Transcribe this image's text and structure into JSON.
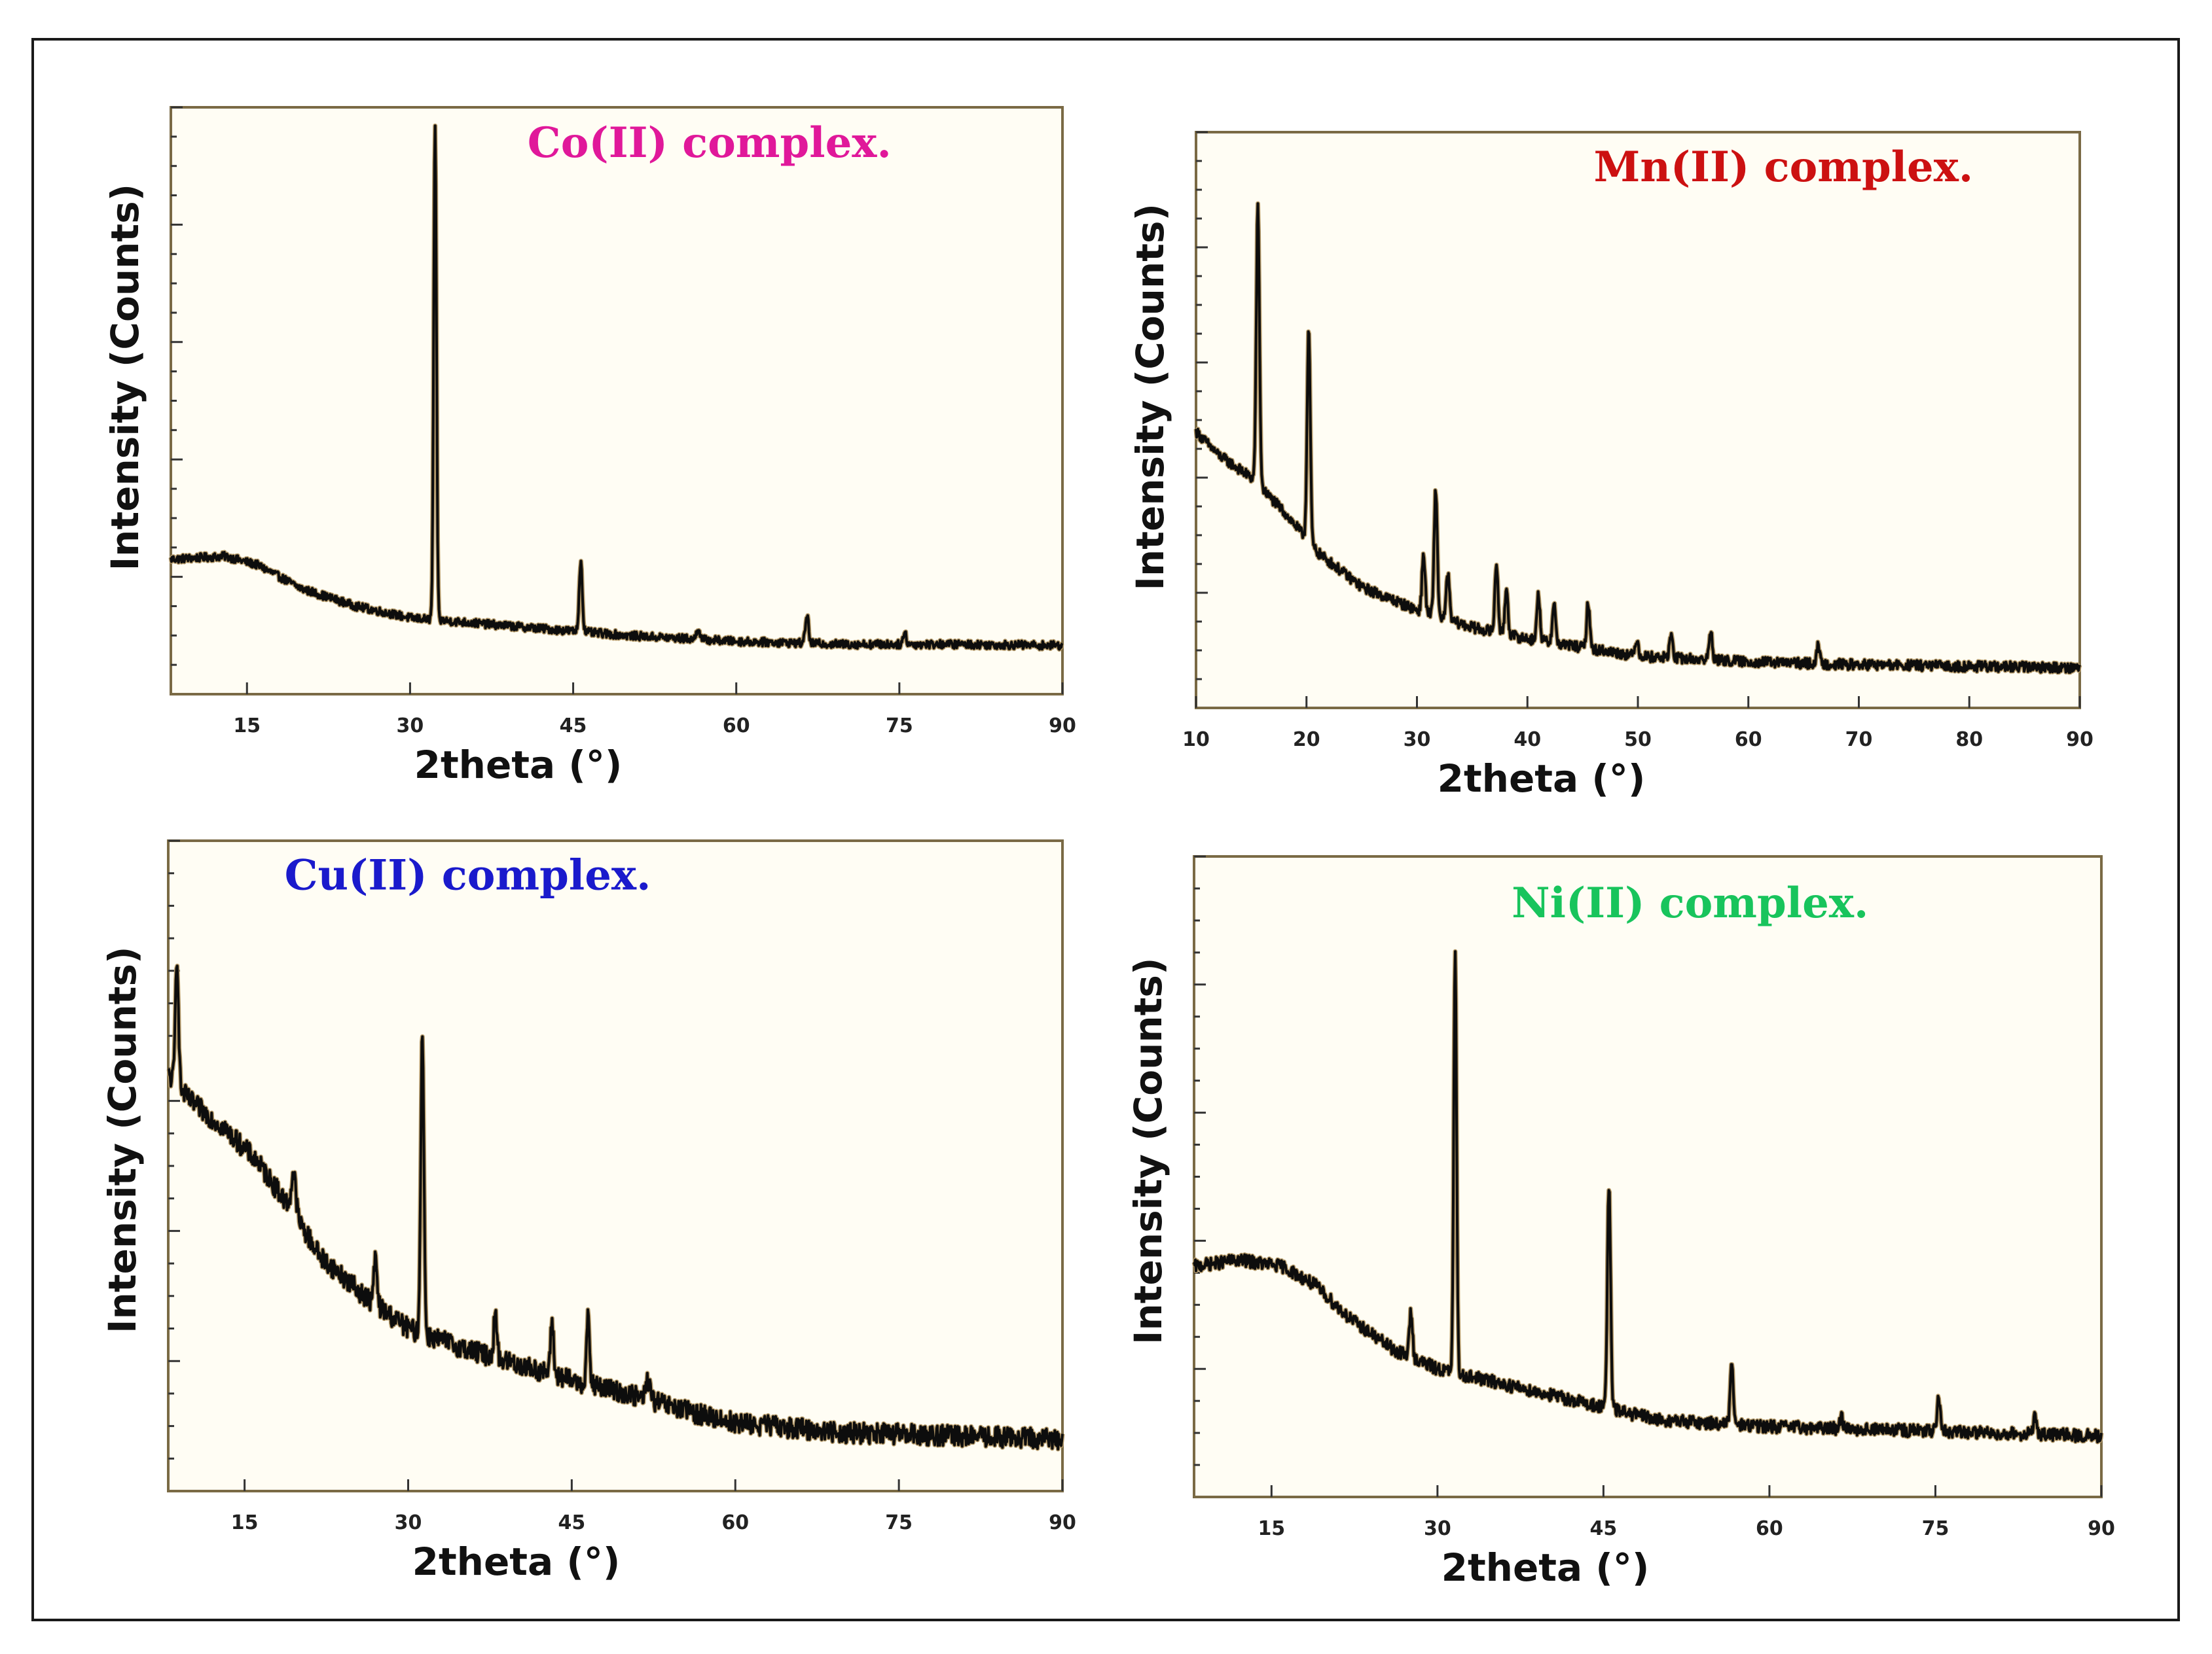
{
  "chart_data": [
    {
      "type": "line",
      "title": "Co(II) complex.",
      "title_color": "#e0189a",
      "xlabel": "2theta (°)",
      "ylabel": "Intensity (Counts)",
      "xlim": [
        8,
        90
      ],
      "ylim": [
        0,
        100
      ],
      "xticks": [
        15,
        30,
        45,
        60,
        75,
        90
      ],
      "xtick_labels": [
        "15",
        "30",
        "45",
        "60",
        "75",
        "90"
      ],
      "baseline": [
        [
          8,
          23
        ],
        [
          13,
          23.5
        ],
        [
          16,
          22
        ],
        [
          20,
          18
        ],
        [
          25,
          15
        ],
        [
          30,
          13
        ],
        [
          40,
          11.5
        ],
        [
          50,
          10
        ],
        [
          60,
          9
        ],
        [
          70,
          8.5
        ],
        [
          80,
          8.5
        ],
        [
          90,
          8.3
        ]
      ],
      "noise": 0.7,
      "peaks": [
        [
          32.3,
          84,
          0.18
        ],
        [
          45.7,
          12,
          0.2
        ],
        [
          56.5,
          2,
          0.2
        ],
        [
          66.5,
          5,
          0.2
        ],
        [
          75.5,
          2,
          0.2
        ]
      ]
    },
    {
      "type": "line",
      "title": "Mn(II) complex.",
      "title_color": "#cc1111",
      "xlabel": "2theta (°)",
      "ylabel": "Intensity (Counts)",
      "xlim": [
        10,
        90
      ],
      "ylim": [
        0,
        100
      ],
      "xticks": [
        10,
        20,
        30,
        40,
        50,
        60,
        70,
        80,
        90
      ],
      "xtick_labels": [
        "10",
        "20",
        "30",
        "40",
        "50",
        "60",
        "70",
        "80",
        "90"
      ],
      "baseline": [
        [
          10,
          48
        ],
        [
          12,
          44
        ],
        [
          15,
          40
        ],
        [
          18,
          34
        ],
        [
          21,
          27
        ],
        [
          25,
          21
        ],
        [
          30,
          17
        ],
        [
          35,
          14
        ],
        [
          40,
          12
        ],
        [
          50,
          9
        ],
        [
          60,
          8
        ],
        [
          70,
          7.5
        ],
        [
          80,
          7.2
        ],
        [
          90,
          7
        ]
      ],
      "noise": 0.9,
      "peaks": [
        [
          15.6,
          48,
          0.2
        ],
        [
          20.2,
          37,
          0.2
        ],
        [
          30.6,
          10,
          0.2
        ],
        [
          31.7,
          22,
          0.2
        ],
        [
          32.8,
          8,
          0.2
        ],
        [
          37.2,
          12,
          0.2
        ],
        [
          38.1,
          8,
          0.2
        ],
        [
          41,
          8,
          0.2
        ],
        [
          42.4,
          7,
          0.2
        ],
        [
          45.5,
          8,
          0.2
        ],
        [
          49.9,
          3,
          0.2
        ],
        [
          53,
          4,
          0.2
        ],
        [
          56.6,
          5,
          0.2
        ],
        [
          66.3,
          3,
          0.2
        ]
      ]
    },
    {
      "type": "line",
      "title": "Cu(II) complex.",
      "title_color": "#1a1acc",
      "xlabel": "2theta (°)",
      "ylabel": "Intensity (Counts)",
      "xlim": [
        8,
        90
      ],
      "ylim": [
        0,
        100
      ],
      "xticks": [
        15,
        30,
        45,
        60,
        75,
        90
      ],
      "xtick_labels": [
        "15",
        "30",
        "45",
        "60",
        "75",
        "90"
      ],
      "baseline": [
        [
          8,
          64
        ],
        [
          10,
          60
        ],
        [
          13,
          56
        ],
        [
          16,
          51
        ],
        [
          19,
          44
        ],
        [
          22,
          36
        ],
        [
          26,
          30
        ],
        [
          30,
          25
        ],
        [
          35,
          22
        ],
        [
          40,
          19.5
        ],
        [
          45,
          17
        ],
        [
          50,
          15
        ],
        [
          55,
          12.5
        ],
        [
          60,
          10.5
        ],
        [
          70,
          9
        ],
        [
          80,
          8.5
        ],
        [
          90,
          8
        ]
      ],
      "noise": 1.6,
      "peaks": [
        [
          8.8,
          20,
          0.2
        ],
        [
          19.5,
          6,
          0.3
        ],
        [
          27,
          7,
          0.2
        ],
        [
          31.3,
          47,
          0.2
        ],
        [
          38,
          7,
          0.2
        ],
        [
          43.2,
          8,
          0.2
        ],
        [
          46.5,
          10,
          0.2
        ],
        [
          52,
          3,
          0.3
        ]
      ]
    },
    {
      "type": "line",
      "title": "Ni(II) complex.",
      "title_color": "#18c45c",
      "xlabel": "2theta (°)",
      "ylabel": "Intensity (Counts)",
      "xlim": [
        8,
        90
      ],
      "ylim": [
        0,
        100
      ],
      "xticks": [
        15,
        30,
        45,
        60,
        75,
        90
      ],
      "xtick_labels": [
        "15",
        "30",
        "45",
        "60",
        "75",
        "90"
      ],
      "baseline": [
        [
          8,
          36
        ],
        [
          12,
          37
        ],
        [
          16,
          36
        ],
        [
          19,
          33
        ],
        [
          22,
          28
        ],
        [
          26,
          23
        ],
        [
          30,
          20
        ],
        [
          35,
          18
        ],
        [
          40,
          16
        ],
        [
          45,
          14
        ],
        [
          50,
          12
        ],
        [
          60,
          11
        ],
        [
          70,
          10.5
        ],
        [
          80,
          10
        ],
        [
          90,
          9.5
        ]
      ],
      "noise": 1.0,
      "peaks": [
        [
          27.6,
          7,
          0.2
        ],
        [
          31.6,
          66,
          0.18
        ],
        [
          45.5,
          35,
          0.2
        ],
        [
          56.6,
          9,
          0.2
        ],
        [
          66.5,
          2,
          0.2
        ],
        [
          75.3,
          5,
          0.2
        ],
        [
          84,
          3,
          0.2
        ]
      ]
    }
  ]
}
